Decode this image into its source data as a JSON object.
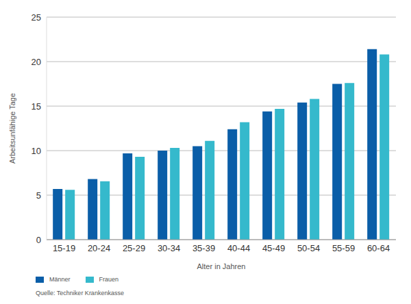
{
  "chart_data": {
    "type": "bar",
    "x_label": "Alter in Jahren",
    "y_label": "Arbeitsunfähige Tage",
    "source": "Quelle: Techniker Krankenkasse",
    "categories": [
      "15-19",
      "20-24",
      "25-29",
      "30-34",
      "35-39",
      "40-44",
      "45-49",
      "50-54",
      "55-59",
      "60-64"
    ],
    "series": [
      {
        "name": "Männer",
        "color": "#0a5ea8",
        "values": [
          5.7,
          6.8,
          9.7,
          10.0,
          10.5,
          12.4,
          14.4,
          15.4,
          17.5,
          21.4
        ]
      },
      {
        "name": "Frauen",
        "color": "#35b9cc",
        "values": [
          5.6,
          6.55,
          9.3,
          10.3,
          11.1,
          13.2,
          14.7,
          15.8,
          17.6,
          20.8
        ]
      }
    ],
    "ylim": [
      0,
      25
    ],
    "yticks": [
      0,
      5,
      10,
      15,
      20,
      25
    ],
    "grid": true,
    "legend": "bottom-left"
  }
}
